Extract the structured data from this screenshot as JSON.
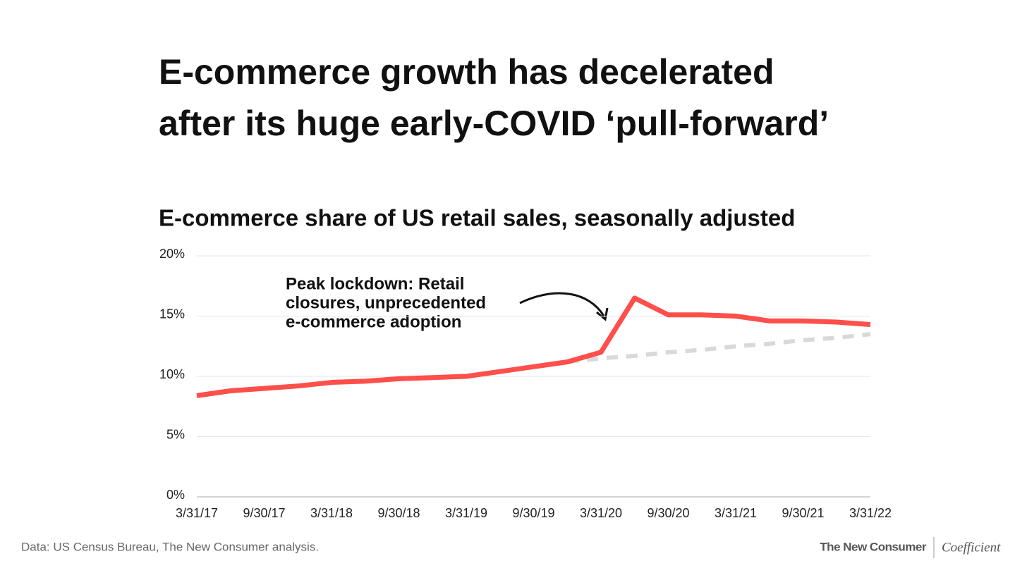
{
  "chart_data": {
    "type": "line",
    "title": [
      "E-commerce growth has decelerated",
      "after its huge early-COVID ‘pull-forward’"
    ],
    "subtitle": "E-commerce share of US retail sales, seasonally adjusted",
    "annotation": [
      "Peak lockdown: Retail",
      "closures, unprecedented",
      "e-commerce adoption"
    ],
    "source": "Data: US Census Bureau, The New Consumer analysis.",
    "branding": [
      "The New Consumer",
      "Coefficient"
    ],
    "categories": [
      "3/31/17",
      null,
      "9/30/17",
      null,
      "3/31/18",
      null,
      "9/30/18",
      null,
      "3/31/19",
      null,
      "9/30/19",
      null,
      "3/31/20",
      null,
      "9/30/20",
      null,
      "3/31/21",
      null,
      "9/30/21",
      null,
      "3/31/22"
    ],
    "series": [
      {
        "color": "#ff4f4a",
        "dash": false,
        "values": [
          8.4,
          8.8,
          9.0,
          9.2,
          9.5,
          9.6,
          9.8,
          9.9,
          10.0,
          10.4,
          10.8,
          11.2,
          12.0,
          16.5,
          15.1,
          15.1,
          15.0,
          14.6,
          14.6,
          14.5,
          14.3
        ]
      },
      {
        "color": "#d9d9d9",
        "dash": true,
        "values": [
          null,
          null,
          null,
          null,
          null,
          null,
          null,
          null,
          null,
          null,
          null,
          11.2,
          11.5,
          11.7,
          12.0,
          12.2,
          12.5,
          12.7,
          13.0,
          13.2,
          13.5
        ]
      }
    ],
    "ylim": [
      0,
      20
    ],
    "yticks": [
      {
        "value": 0,
        "label": "0%"
      },
      {
        "value": 5,
        "label": "5%"
      },
      {
        "value": 10,
        "label": "10%"
      },
      {
        "value": 15,
        "label": "15%"
      },
      {
        "value": 20,
        "label": "20%"
      }
    ],
    "grid": true
  }
}
